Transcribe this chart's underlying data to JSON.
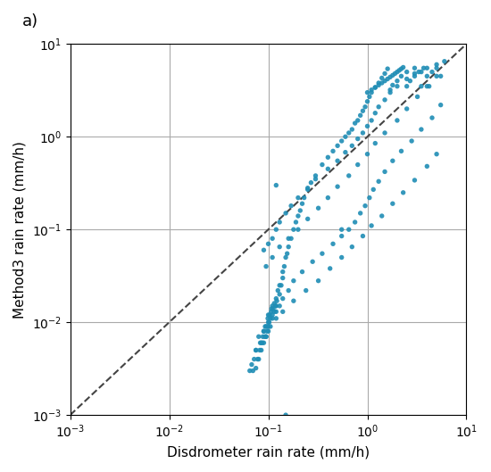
{
  "title_label": "a)",
  "xlabel": "Disdrometer rain rate (mm/h)",
  "ylabel": "Method3 rain rate (mm/h)",
  "xlim": [
    0.001,
    10
  ],
  "ylim": [
    0.001,
    10
  ],
  "point_color": "#1f8db5",
  "point_size": 15,
  "point_alpha": 0.9,
  "dashed_line_color": "#444444",
  "scatter_x": [
    0.065,
    0.068,
    0.07,
    0.072,
    0.075,
    0.075,
    0.078,
    0.08,
    0.082,
    0.083,
    0.085,
    0.087,
    0.088,
    0.09,
    0.09,
    0.092,
    0.093,
    0.095,
    0.095,
    0.097,
    0.098,
    0.099,
    0.1,
    0.1,
    0.1,
    0.102,
    0.103,
    0.105,
    0.107,
    0.108,
    0.11,
    0.11,
    0.112,
    0.115,
    0.115,
    0.118,
    0.12,
    0.12,
    0.122,
    0.125,
    0.13,
    0.13,
    0.135,
    0.14,
    0.14,
    0.145,
    0.15,
    0.155,
    0.16,
    0.17,
    0.18,
    0.19,
    0.2,
    0.21,
    0.22,
    0.23,
    0.25,
    0.27,
    0.3,
    0.35,
    0.4,
    0.45,
    0.5,
    0.55,
    0.6,
    0.65,
    0.7,
    0.75,
    0.8,
    0.85,
    0.9,
    0.95,
    1.0,
    1.05,
    1.1,
    1.2,
    1.3,
    1.4,
    1.5,
    1.6,
    1.7,
    1.8,
    2.0,
    2.2,
    2.5,
    3.0,
    3.5,
    4.0,
    5.0,
    6.0,
    0.09,
    0.1,
    0.11,
    0.12,
    0.13,
    0.15,
    0.17,
    0.2,
    0.25,
    0.3,
    0.4,
    0.5,
    0.6,
    0.7,
    0.8,
    0.9,
    1.0,
    1.1,
    1.2,
    1.3,
    1.5,
    1.7,
    2.0,
    2.5,
    3.0,
    3.5,
    4.0,
    4.5,
    5.0,
    5.5,
    0.08,
    0.09,
    0.1,
    0.11,
    0.12,
    0.13,
    0.14,
    0.16,
    0.18,
    0.22,
    0.28,
    0.35,
    0.45,
    0.55,
    0.65,
    0.75,
    0.85,
    0.95,
    1.05,
    1.15,
    1.3,
    1.5,
    1.8,
    2.2,
    2.8,
    3.5,
    4.5,
    5.5,
    0.075,
    0.085,
    0.095,
    0.105,
    0.12,
    0.14,
    0.18,
    0.24,
    0.32,
    0.42,
    0.55,
    0.7,
    0.9,
    1.1,
    1.4,
    1.8,
    2.3,
    3.0,
    4.0,
    5.0,
    0.095,
    0.11,
    0.13,
    0.16,
    0.2,
    0.25,
    0.32,
    0.4,
    0.5,
    0.65,
    0.8,
    1.0,
    1.2,
    1.5,
    2.0,
    2.5,
    3.2,
    4.0,
    5.0,
    1.0,
    1.1,
    1.2,
    1.3,
    1.4,
    1.5,
    1.6,
    1.7,
    1.8,
    1.9,
    2.0,
    2.1,
    2.2,
    2.3,
    2.5,
    2.7,
    3.0,
    3.3,
    3.7,
    4.2,
    0.12,
    0.15,
    0.55
  ],
  "scatter_y": [
    0.003,
    0.0035,
    0.003,
    0.004,
    0.0032,
    0.005,
    0.004,
    0.004,
    0.005,
    0.006,
    0.005,
    0.006,
    0.007,
    0.006,
    0.008,
    0.007,
    0.009,
    0.007,
    0.009,
    0.008,
    0.009,
    0.011,
    0.008,
    0.01,
    0.012,
    0.01,
    0.012,
    0.011,
    0.013,
    0.014,
    0.012,
    0.015,
    0.014,
    0.013,
    0.016,
    0.015,
    0.015,
    0.018,
    0.017,
    0.022,
    0.02,
    0.025,
    0.025,
    0.03,
    0.035,
    0.04,
    0.05,
    0.055,
    0.065,
    0.08,
    0.1,
    0.12,
    0.14,
    0.16,
    0.19,
    0.22,
    0.27,
    0.32,
    0.38,
    0.5,
    0.6,
    0.7,
    0.8,
    0.9,
    1.0,
    1.1,
    1.2,
    1.4,
    1.5,
    1.7,
    1.9,
    2.1,
    2.4,
    2.7,
    3.0,
    3.4,
    3.8,
    4.3,
    4.8,
    5.4,
    3.2,
    3.6,
    4.0,
    4.5,
    5.0,
    5.5,
    5.0,
    5.5,
    6.0,
    6.5,
    0.06,
    0.07,
    0.08,
    0.1,
    0.12,
    0.15,
    0.18,
    0.22,
    0.28,
    0.35,
    0.45,
    0.55,
    0.68,
    0.8,
    0.95,
    1.1,
    1.3,
    1.5,
    1.8,
    2.1,
    2.5,
    3.0,
    3.5,
    4.2,
    4.8,
    3.5,
    4.5,
    5.0,
    5.5,
    4.5,
    0.007,
    0.008,
    0.009,
    0.011,
    0.013,
    0.015,
    0.018,
    0.022,
    0.028,
    0.035,
    0.045,
    0.055,
    0.07,
    0.085,
    0.1,
    0.12,
    0.15,
    0.18,
    0.22,
    0.27,
    0.33,
    0.42,
    0.55,
    0.7,
    0.9,
    1.2,
    1.6,
    2.2,
    0.005,
    0.006,
    0.007,
    0.009,
    0.011,
    0.013,
    0.017,
    0.022,
    0.028,
    0.038,
    0.05,
    0.065,
    0.085,
    0.11,
    0.14,
    0.19,
    0.25,
    0.34,
    0.48,
    0.65,
    0.04,
    0.05,
    0.065,
    0.08,
    0.1,
    0.13,
    0.17,
    0.22,
    0.29,
    0.38,
    0.5,
    0.65,
    0.85,
    1.1,
    1.5,
    2.0,
    2.7,
    3.5,
    4.5,
    3.0,
    3.2,
    3.4,
    3.6,
    3.8,
    4.0,
    4.2,
    4.4,
    4.6,
    4.8,
    5.0,
    5.2,
    5.4,
    5.6,
    3.5,
    4.0,
    4.5,
    5.0,
    5.5,
    3.5,
    0.3,
    0.001,
    0.1
  ]
}
